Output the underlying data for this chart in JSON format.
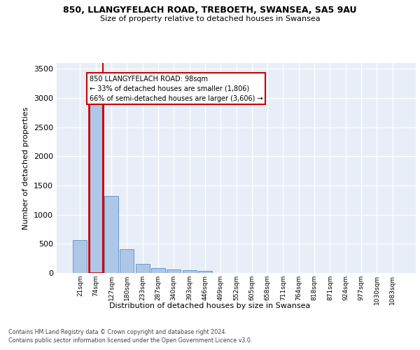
{
  "title1": "850, LLANGYFELACH ROAD, TREBOETH, SWANSEA, SA5 9AU",
  "title2": "Size of property relative to detached houses in Swansea",
  "xlabel": "Distribution of detached houses by size in Swansea",
  "ylabel": "Number of detached properties",
  "footnote1": "Contains HM Land Registry data © Crown copyright and database right 2024.",
  "footnote2": "Contains public sector information licensed under the Open Government Licence v3.0.",
  "annotation_title": "850 LLANGYFELACH ROAD: 98sqm",
  "annotation_line1": "← 33% of detached houses are smaller (1,806)",
  "annotation_line2": "66% of semi-detached houses are larger (3,606) →",
  "bar_labels": [
    "21sqm",
    "74sqm",
    "127sqm",
    "180sqm",
    "233sqm",
    "287sqm",
    "340sqm",
    "393sqm",
    "446sqm",
    "499sqm",
    "552sqm",
    "605sqm",
    "658sqm",
    "711sqm",
    "764sqm",
    "818sqm",
    "871sqm",
    "924sqm",
    "977sqm",
    "1030sqm",
    "1083sqm"
  ],
  "bar_values": [
    570,
    2920,
    1320,
    410,
    155,
    80,
    55,
    45,
    40,
    0,
    0,
    0,
    0,
    0,
    0,
    0,
    0,
    0,
    0,
    0,
    0
  ],
  "bar_color": "#aec6e8",
  "bar_edge_color": "#5a8fc2",
  "highlight_bar_index": 1,
  "highlight_color": "#cc0000",
  "background_color": "#e8eef7",
  "ylim": [
    0,
    3600
  ],
  "yticks": [
    0,
    500,
    1000,
    1500,
    2000,
    2500,
    3000,
    3500
  ]
}
